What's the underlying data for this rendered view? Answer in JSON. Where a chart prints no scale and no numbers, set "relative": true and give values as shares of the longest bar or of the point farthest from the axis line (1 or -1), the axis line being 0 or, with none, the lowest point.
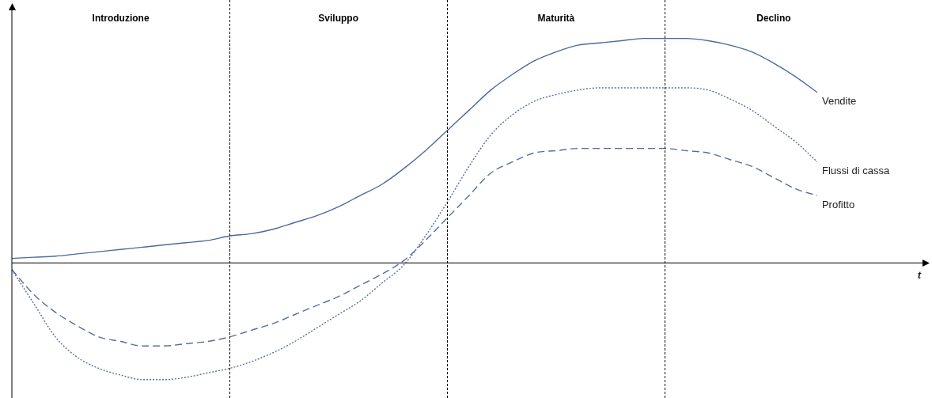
{
  "chart_data": {
    "type": "line",
    "relative": true,
    "xlabel": "t",
    "categories": [
      null,
      null,
      null,
      null,
      null,
      null,
      null,
      null,
      null,
      null,
      null,
      null,
      null,
      null,
      null,
      null,
      null,
      null,
      null,
      null,
      null,
      null,
      null,
      null,
      null,
      null,
      null,
      null,
      null,
      null,
      null,
      null,
      null,
      null,
      null,
      null,
      null,
      null,
      null,
      null,
      null,
      null
    ],
    "series": [
      {
        "name": "Vendite",
        "color": "#4a6aa0",
        "line_style": "solid",
        "values": [
          0.02,
          0.025,
          0.03,
          0.04,
          0.05,
          0.06,
          0.07,
          0.08,
          0.09,
          0.1,
          0.12,
          0.13,
          0.15,
          0.18,
          0.21,
          0.25,
          0.3,
          0.35,
          0.42,
          0.5,
          0.59,
          0.68,
          0.77,
          0.84,
          0.9,
          0.94,
          0.97,
          0.98,
          0.99,
          1.0,
          1.0,
          1.0,
          0.99,
          0.97,
          0.94,
          0.89,
          0.83,
          0.76,
          null,
          null,
          null,
          null
        ]
      },
      {
        "name": "Flussi di cassa",
        "color": "#5a6e9c",
        "line_style": "dotted",
        "values": [
          -0.03,
          -0.18,
          -0.33,
          -0.42,
          -0.47,
          -0.5,
          -0.52,
          -0.52,
          -0.51,
          -0.49,
          -0.47,
          -0.44,
          -0.4,
          -0.35,
          -0.29,
          -0.23,
          -0.17,
          -0.09,
          -0.01,
          0.12,
          0.27,
          0.43,
          0.57,
          0.66,
          0.72,
          0.75,
          0.77,
          0.78,
          0.78,
          0.78,
          0.78,
          0.78,
          0.77,
          0.73,
          0.68,
          0.61,
          0.54,
          0.45,
          null,
          null,
          null,
          null
        ]
      },
      {
        "name": "Profitto",
        "color": "#5a6e9c",
        "line_style": "dashed",
        "values": [
          -0.03,
          -0.14,
          -0.22,
          -0.28,
          -0.33,
          -0.35,
          -0.37,
          -0.37,
          -0.36,
          -0.35,
          -0.33,
          -0.3,
          -0.27,
          -0.23,
          -0.19,
          -0.15,
          -0.1,
          -0.05,
          0.01,
          0.1,
          0.2,
          0.3,
          0.4,
          0.45,
          0.49,
          0.5,
          0.51,
          0.51,
          0.51,
          0.51,
          0.51,
          0.5,
          0.49,
          0.46,
          0.43,
          0.38,
          0.33,
          0.3,
          null,
          null,
          null,
          null
        ]
      }
    ],
    "annotations": [
      "Introduzione",
      "Sviluppo",
      "Maturità",
      "Declino"
    ],
    "legend": false,
    "grid": "x",
    "marker": "none"
  }
}
